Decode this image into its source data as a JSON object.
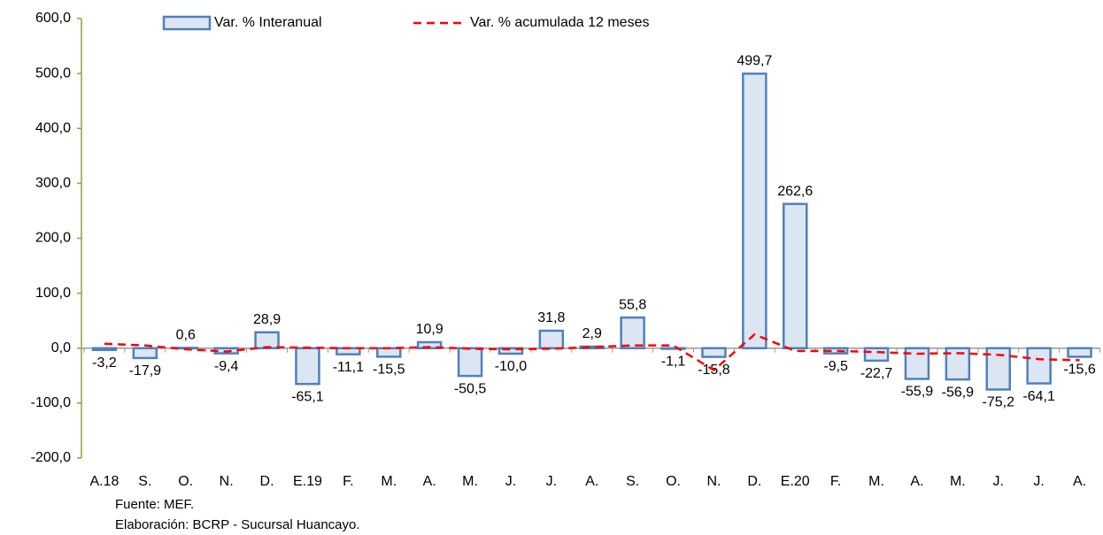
{
  "chart_data": {
    "type": "bar",
    "categories": [
      "A.18",
      "S.",
      "O.",
      "N.",
      "D.",
      "E.19",
      "F.",
      "M.",
      "A.",
      "M.",
      "J.",
      "J.",
      "A.",
      "S.",
      "O.",
      "N.",
      "D.",
      "E.20",
      "F.",
      "M.",
      "A.",
      "M.",
      "J.",
      "J.",
      "A."
    ],
    "series": [
      {
        "name": "Var. % Interanual",
        "type": "bar",
        "color": "#dce6f2",
        "edgecolor": "#4f81bd",
        "values": [
          -3.2,
          -17.9,
          0.6,
          -9.4,
          28.9,
          -65.1,
          -11.1,
          -15.5,
          10.9,
          -50.5,
          -10.0,
          31.8,
          2.9,
          55.8,
          -1.1,
          -15.8,
          499.7,
          262.6,
          -9.5,
          -22.7,
          -55.9,
          -56.9,
          -75.2,
          -64.1,
          -15.6
        ],
        "value_labels": [
          "-3,2",
          "-17,9",
          "0,6",
          "-9,4",
          "28,9",
          "-65,1",
          "-11,1",
          "-15,5",
          "10,9",
          "-50,5",
          "-10,0",
          "31,8",
          "2,9",
          "55,8",
          "-1,1",
          "-15,8",
          "499,7",
          "262,6",
          "-9,5",
          "-22,7",
          "-55,9",
          "-56,9",
          "-75,2",
          "-64,1",
          "-15,6"
        ]
      },
      {
        "name": "Var. % acumulada 12 meses",
        "type": "line",
        "color": "#ff0000",
        "values": [
          8,
          5,
          -2,
          -6,
          2,
          1,
          0,
          0,
          2,
          -1,
          -2,
          -1,
          2,
          5,
          5,
          -40,
          25,
          -5,
          -5,
          -7,
          -10,
          -9,
          -12,
          -20,
          -22
        ]
      }
    ],
    "ylim": [
      -200,
      600
    ],
    "yticks": [
      {
        "value": -200,
        "label": "-200,0"
      },
      {
        "value": -100,
        "label": "-100,0"
      },
      {
        "value": 0,
        "label": "0,0"
      },
      {
        "value": 100,
        "label": "100,0"
      },
      {
        "value": 200,
        "label": "200,0"
      },
      {
        "value": 300,
        "label": "300,0"
      },
      {
        "value": 400,
        "label": "400,0"
      },
      {
        "value": 500,
        "label": "500,0"
      },
      {
        "value": 600,
        "label": "600,0"
      }
    ],
    "grid": false,
    "legend": "top",
    "notes": [
      "Fuente: MEF.",
      "Elaboración: BCRP - Sucursal Huancayo."
    ]
  }
}
